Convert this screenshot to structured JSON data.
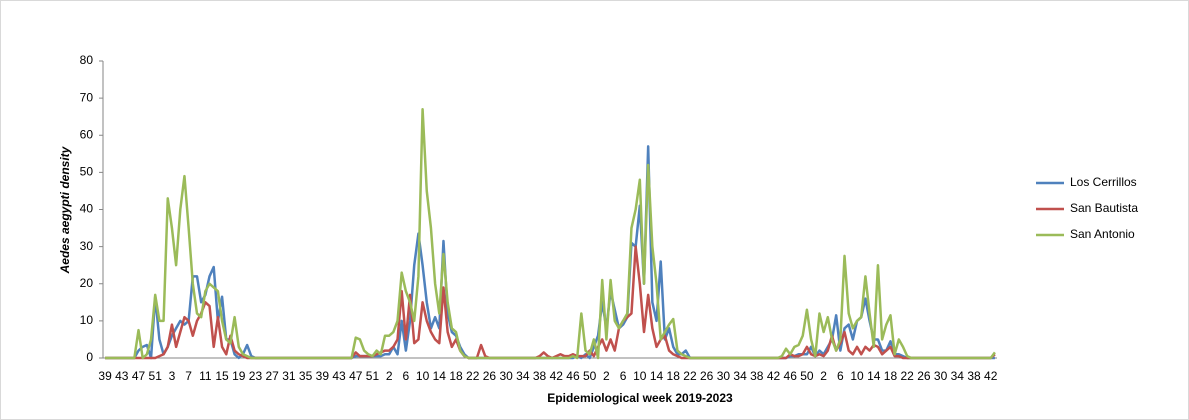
{
  "chart_data": {
    "type": "line",
    "xlabel": "Epidemiological week 2019-2023",
    "ylabel": "Aedes aegypti density",
    "ylim": [
      0,
      80
    ],
    "yticks": [
      0,
      10,
      20,
      30,
      40,
      50,
      60,
      70,
      80
    ],
    "grid": false,
    "legend": "right",
    "categories": [
      39,
      null,
      null,
      null,
      43,
      null,
      null,
      null,
      47,
      null,
      null,
      null,
      51,
      null,
      null,
      null,
      3,
      null,
      null,
      null,
      7,
      null,
      null,
      null,
      11,
      null,
      null,
      null,
      15,
      null,
      null,
      null,
      19,
      null,
      null,
      null,
      23,
      null,
      null,
      null,
      27,
      null,
      null,
      null,
      31,
      null,
      null,
      null,
      35,
      null,
      null,
      null,
      39,
      null,
      null,
      null,
      43,
      null,
      null,
      null,
      47,
      null,
      null,
      null,
      51,
      null,
      null,
      null,
      2,
      null,
      null,
      null,
      6,
      null,
      null,
      null,
      10,
      null,
      null,
      null,
      14,
      null,
      null,
      null,
      18,
      null,
      null,
      null,
      22,
      null,
      null,
      null,
      26,
      null,
      null,
      null,
      30,
      null,
      null,
      null,
      34,
      null,
      null,
      null,
      38,
      null,
      null,
      null,
      42,
      null,
      null,
      null,
      46,
      null,
      null,
      null,
      50,
      null,
      null,
      null,
      2,
      null,
      null,
      null,
      6,
      null,
      null,
      null,
      10,
      null,
      null,
      null,
      14,
      null,
      null,
      null,
      18,
      null,
      null,
      null,
      22,
      null,
      null,
      null,
      26,
      null,
      null,
      null,
      30,
      null,
      null,
      null,
      34,
      null,
      null,
      null,
      38,
      null,
      null,
      null,
      42,
      null,
      null,
      null,
      46,
      null,
      null,
      null,
      50,
      null,
      null,
      null,
      2,
      null,
      null,
      null,
      6,
      null,
      null,
      null,
      10,
      null,
      null,
      null,
      14,
      null,
      null,
      null,
      18,
      null,
      null,
      null,
      22,
      null,
      null,
      null,
      26,
      null,
      null,
      null,
      30,
      null,
      null,
      null,
      34,
      null,
      null,
      null,
      38,
      null,
      null,
      null,
      42,
      null
    ],
    "series": [
      {
        "name": "Los Cerrillos",
        "color": "#4f81bd",
        "values": [
          0,
          0,
          0,
          0,
          0,
          0,
          0,
          0,
          2,
          3,
          3.5,
          0,
          16.5,
          5,
          1,
          3,
          6,
          8,
          10,
          9,
          10,
          22,
          22,
          15,
          17,
          22,
          24.5,
          10,
          16.5,
          5,
          5,
          1,
          0,
          1,
          3.5,
          0.5,
          0,
          0,
          0,
          0,
          0,
          0,
          0,
          0,
          0,
          0,
          0,
          0,
          0,
          0,
          0,
          0,
          0,
          0,
          0,
          0,
          0,
          0,
          0,
          0,
          0.5,
          0.5,
          0.5,
          0.5,
          0.5,
          0.5,
          0.5,
          1,
          1,
          3,
          1,
          10,
          2,
          10,
          25,
          33.5,
          25,
          15,
          8,
          11,
          8,
          31.5,
          12,
          7,
          6,
          3,
          1,
          0,
          0,
          0,
          0,
          0,
          0,
          0,
          0,
          0,
          0,
          0,
          0,
          0,
          0,
          0,
          0,
          0,
          0,
          0,
          0,
          0,
          0,
          0,
          0,
          0,
          0,
          0.5,
          0,
          1,
          0,
          3,
          6,
          15,
          8,
          18,
          13,
          8,
          9,
          11,
          31,
          30,
          41,
          20,
          57,
          15,
          10,
          26,
          5,
          8,
          3,
          1,
          1,
          2,
          0,
          0,
          0,
          0,
          0,
          0,
          0,
          0,
          0,
          0,
          0,
          0,
          0,
          0,
          0,
          0,
          0,
          0,
          0,
          0,
          0,
          0,
          0,
          0,
          0.5,
          0.5,
          1,
          1,
          1,
          3,
          0.5,
          2,
          1,
          3,
          5,
          11.5,
          2,
          8,
          9,
          5,
          10,
          11,
          16,
          10,
          5,
          5,
          2,
          2,
          4.5,
          1,
          1,
          0.5,
          0,
          0,
          0,
          0,
          0,
          0,
          0,
          0,
          0,
          0,
          0,
          0,
          0,
          0,
          0,
          0,
          0,
          0,
          0,
          0,
          0,
          0
        ]
      },
      {
        "name": "San Bautista",
        "color": "#c0504d",
        "values": [
          0,
          0,
          0,
          0,
          0,
          0,
          0,
          0,
          0,
          0,
          0,
          0,
          0,
          0.5,
          1,
          3,
          9,
          3,
          7,
          11,
          10,
          6,
          10,
          12,
          15,
          14,
          3,
          11,
          3,
          1,
          6,
          2,
          1,
          0.5,
          0,
          0,
          0,
          0,
          0,
          0,
          0,
          0,
          0,
          0,
          0,
          0,
          0,
          0,
          0,
          0,
          0,
          0,
          0,
          0,
          0,
          0,
          0,
          0,
          0,
          0,
          1.5,
          0.5,
          0.5,
          0.5,
          0.5,
          1,
          1.5,
          2,
          2,
          3,
          5,
          18,
          5,
          17,
          4,
          5,
          15,
          10,
          7,
          5,
          4,
          19,
          7,
          3,
          5,
          2,
          0.5,
          0,
          0,
          0,
          3.5,
          0.5,
          0,
          0,
          0,
          0,
          0,
          0,
          0,
          0,
          0,
          0,
          0,
          0,
          0.5,
          1.5,
          0.5,
          0,
          0.5,
          1,
          0.5,
          0.5,
          1,
          0.5,
          0.5,
          0.5,
          2,
          0.5,
          3,
          5,
          2,
          5,
          2,
          8,
          10,
          11,
          12,
          30,
          20,
          7,
          17,
          8,
          3,
          5,
          6,
          2,
          1,
          0.5,
          0,
          0,
          0,
          0,
          0,
          0,
          0,
          0,
          0,
          0,
          0,
          0,
          0,
          0,
          0,
          0,
          0,
          0,
          0,
          0,
          0,
          0,
          0,
          0,
          0,
          0,
          1,
          0.5,
          0.5,
          1,
          3,
          1,
          0.5,
          1,
          0.5,
          2,
          6,
          2,
          4,
          7,
          2,
          1,
          3,
          1,
          3,
          2,
          3.5,
          3,
          1,
          2,
          3,
          0.5,
          0.5,
          0,
          0,
          0,
          0,
          0,
          0,
          0,
          0,
          0,
          0,
          0,
          0,
          0,
          0,
          0,
          0,
          0,
          0,
          0,
          0,
          0,
          0,
          1
        ]
      },
      {
        "name": "San Antonio",
        "color": "#9bbb59",
        "values": [
          0,
          0,
          0,
          0,
          0,
          0,
          0,
          0,
          7.5,
          0,
          1,
          5,
          17,
          10,
          10,
          43,
          35,
          25,
          40,
          49,
          35,
          20,
          12,
          11,
          18,
          20,
          19,
          18,
          10,
          5,
          4,
          11,
          3,
          1,
          0.5,
          0,
          0,
          0,
          0,
          0,
          0,
          0,
          0,
          0,
          0,
          0,
          0,
          0,
          0,
          0,
          0,
          0,
          0,
          0,
          0,
          0,
          0,
          0,
          0,
          0,
          5.5,
          5,
          2,
          1,
          0.5,
          2,
          1,
          6,
          6,
          7,
          10,
          23,
          18,
          15,
          10,
          22,
          67,
          45,
          35,
          20,
          12,
          28,
          15,
          8,
          7,
          2,
          0.5,
          0,
          0,
          0,
          0,
          0,
          0,
          0,
          0,
          0,
          0,
          0,
          0,
          0,
          0,
          0,
          0,
          0,
          0,
          0,
          0,
          0,
          0,
          0,
          0,
          0,
          0.5,
          0,
          12,
          2,
          1,
          5,
          0,
          21,
          5,
          21,
          10,
          8,
          10,
          12,
          35,
          40,
          48,
          20,
          52,
          30,
          20,
          5,
          7,
          9,
          10.5,
          2,
          1,
          0.5,
          0,
          0,
          0,
          0,
          0,
          0,
          0,
          0,
          0,
          0,
          0,
          0,
          0,
          0,
          0,
          0,
          0,
          0,
          0,
          0,
          0,
          0,
          0.5,
          2.5,
          1,
          3,
          3.5,
          6,
          13,
          5,
          0.5,
          12,
          7,
          11,
          5,
          2,
          5,
          27.5,
          12,
          8,
          10,
          11,
          22,
          12,
          3,
          25,
          5,
          9,
          11.5,
          1,
          5,
          3,
          0.5,
          0,
          0,
          0,
          0,
          0,
          0,
          0,
          0,
          0,
          0,
          0,
          0,
          0,
          0,
          0,
          0,
          0,
          0,
          0,
          0,
          1.5
        ]
      }
    ]
  }
}
